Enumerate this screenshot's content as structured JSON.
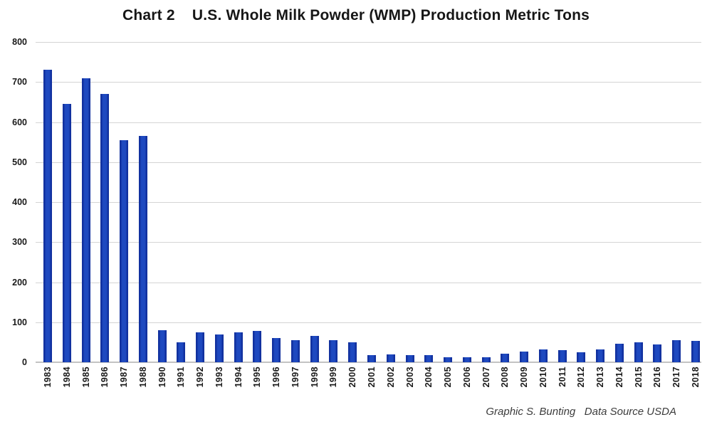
{
  "page": {
    "background": "#ffffff"
  },
  "header": {
    "title": "Chart 2    U.S. Whole Milk Powder (WMP) Production Metric Tons"
  },
  "footer": {
    "credit": "Graphic S. Bunting   Data Source USDA"
  },
  "chart_data": {
    "type": "bar",
    "title": "Chart 2    U.S. Whole Milk Powder (WMP) Production Metric Tons",
    "categories": [
      "1983",
      "1984",
      "1985",
      "1986",
      "1987",
      "1988",
      "1990",
      "1991",
      "1992",
      "1993",
      "1994",
      "1995",
      "1996",
      "1997",
      "1998",
      "1999",
      "2000",
      "2001",
      "2002",
      "2003",
      "2004",
      "2005",
      "2006",
      "2007",
      "2008",
      "2009",
      "2010",
      "2011",
      "2012",
      "2013",
      "2014",
      "2015",
      "2016",
      "2017",
      "2018"
    ],
    "values": [
      730,
      645,
      710,
      670,
      555,
      565,
      80,
      50,
      75,
      70,
      75,
      78,
      60,
      55,
      65,
      55,
      50,
      17,
      20,
      17,
      18,
      13,
      13,
      13,
      22,
      27,
      32,
      30,
      25,
      32,
      47,
      50,
      44,
      55,
      54
    ],
    "xlabel": "",
    "ylabel": "",
    "ylim": [
      0,
      800
    ],
    "yticks": [
      0,
      100,
      200,
      300,
      400,
      500,
      600,
      700,
      800
    ],
    "grid": true,
    "legend": false,
    "colors": {
      "bar_fill": "#1e49c0",
      "bar_edge": "#11309e",
      "gridline": "#d4d4d4",
      "axis_line": "#c3c3c3",
      "text": "#1a1a1a"
    }
  }
}
